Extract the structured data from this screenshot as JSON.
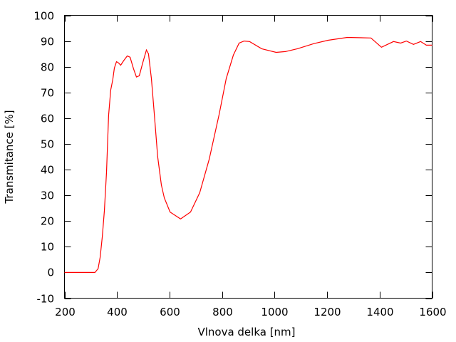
{
  "chart_data": {
    "type": "line",
    "title": "",
    "xlabel": "Vlnova delka [nm]",
    "ylabel": "Transmitance [%]",
    "xlim": [
      200,
      1600
    ],
    "ylim": [
      -10,
      100
    ],
    "xticks": [
      200,
      400,
      600,
      800,
      1000,
      1200,
      1400,
      1600
    ],
    "yticks": [
      -10,
      0,
      10,
      20,
      30,
      40,
      50,
      60,
      70,
      80,
      90,
      100
    ],
    "grid": false,
    "legend": "none",
    "series": [
      {
        "color": "#ff0000",
        "x": [
          200,
          316,
          328,
          336,
          344,
          352,
          360,
          368,
          376,
          384,
          390,
          398,
          406,
          414,
          425,
          439,
          450,
          463,
          474,
          485,
          498,
          512,
          520,
          531,
          542,
          555,
          569,
          580,
          602,
          642,
          680,
          715,
          751,
          789,
          816,
          843,
          865,
          884,
          905,
          951,
          1006,
          1041,
          1087,
          1150,
          1204,
          1277,
          1367,
          1407,
          1453,
          1480,
          1502,
          1529,
          1556,
          1578,
          1600
        ],
        "y": [
          0,
          0,
          1.5,
          6,
          14,
          24,
          39,
          61,
          71,
          75,
          79.5,
          82,
          81.5,
          80.6,
          82.3,
          84.2,
          83.7,
          79.2,
          76,
          76.5,
          81.5,
          86.5,
          85,
          75.4,
          61.5,
          45,
          34,
          29,
          23.5,
          20.8,
          23.5,
          31,
          44,
          61.5,
          75.4,
          84.5,
          89.2,
          90,
          89.8,
          87,
          85.6,
          85.9,
          87,
          89,
          90.3,
          91.4,
          91.2,
          87.6,
          89.8,
          89.2,
          90,
          88.7,
          89.8,
          88.4,
          88.4
        ]
      }
    ]
  }
}
